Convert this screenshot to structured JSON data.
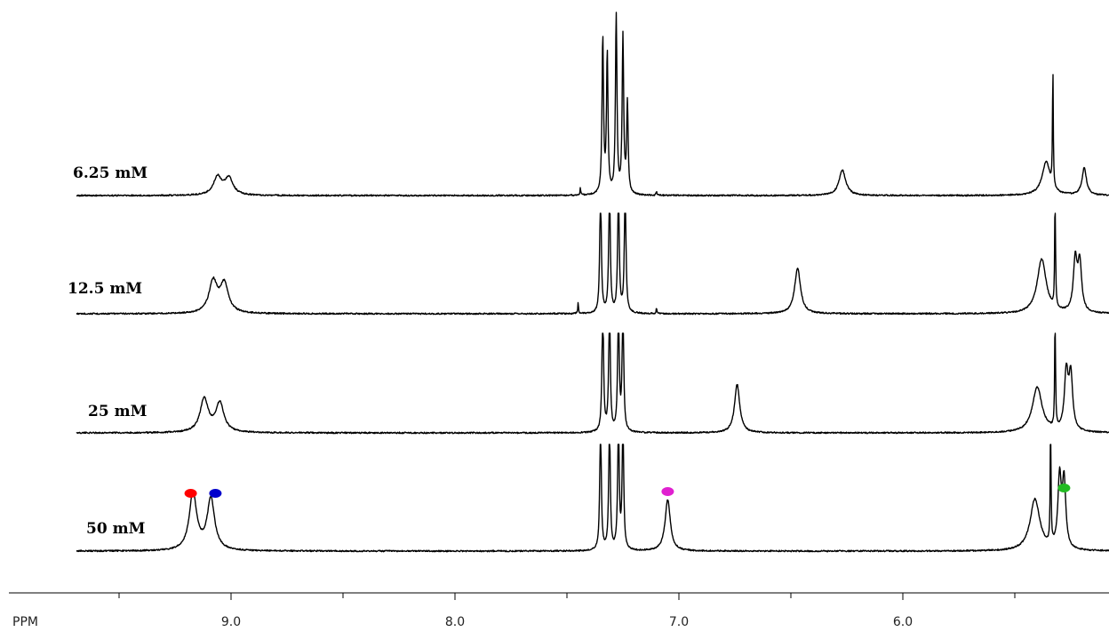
{
  "chart_data": {
    "type": "line",
    "xlabel": "PPM",
    "x_reversed": true,
    "xlim": [
      9.7,
      5.3
    ],
    "ticks": {
      "major": [
        9.0,
        8.0,
        7.0,
        6.0
      ],
      "major_labels": [
        "9.0",
        "8.0",
        "7.0",
        "6.0"
      ],
      "minor": [
        9.5,
        8.5,
        7.5,
        6.5,
        5.5
      ]
    },
    "series": [
      {
        "name": "6.25 mM",
        "peaks": [
          {
            "ppm": 9.06,
            "height": 0.3,
            "width": 0.022
          },
          {
            "ppm": 9.01,
            "height": 0.28,
            "width": 0.022
          },
          {
            "ppm": 7.44,
            "height": 0.12,
            "width": 0.002
          },
          {
            "ppm": 7.34,
            "height": 2.6,
            "width": 0.004
          },
          {
            "ppm": 7.32,
            "height": 2.3,
            "width": 0.004
          },
          {
            "ppm": 7.28,
            "height": 3.0,
            "width": 0.004
          },
          {
            "ppm": 7.25,
            "height": 2.6,
            "width": 0.004
          },
          {
            "ppm": 7.23,
            "height": 1.5,
            "width": 0.004
          },
          {
            "ppm": 7.1,
            "height": 0.08,
            "width": 0.002
          },
          {
            "ppm": 6.27,
            "height": 0.42,
            "width": 0.018
          },
          {
            "ppm": 5.36,
            "height": 0.55,
            "width": 0.022
          },
          {
            "ppm": 5.33,
            "height": 2.0,
            "width": 0.002
          },
          {
            "ppm": 5.19,
            "height": 0.45,
            "width": 0.012
          }
        ]
      },
      {
        "name": "12.5 mM",
        "peaks": [
          {
            "ppm": 9.08,
            "height": 0.52,
            "width": 0.022
          },
          {
            "ppm": 9.03,
            "height": 0.48,
            "width": 0.022
          },
          {
            "ppm": 7.45,
            "height": 0.18,
            "width": 0.002
          },
          {
            "ppm": 7.35,
            "height": 2.2,
            "width": 0.004
          },
          {
            "ppm": 7.31,
            "height": 2.2,
            "width": 0.004
          },
          {
            "ppm": 7.27,
            "height": 2.2,
            "width": 0.004
          },
          {
            "ppm": 7.24,
            "height": 2.2,
            "width": 0.004
          },
          {
            "ppm": 7.1,
            "height": 0.1,
            "width": 0.002
          },
          {
            "ppm": 6.47,
            "height": 0.75,
            "width": 0.016
          },
          {
            "ppm": 5.38,
            "height": 0.9,
            "width": 0.024
          },
          {
            "ppm": 5.32,
            "height": 2.2,
            "width": 0.002
          },
          {
            "ppm": 5.23,
            "height": 0.85,
            "width": 0.01
          },
          {
            "ppm": 5.21,
            "height": 0.8,
            "width": 0.01
          }
        ]
      },
      {
        "name": "25 mM",
        "peaks": [
          {
            "ppm": 9.12,
            "height": 0.55,
            "width": 0.022
          },
          {
            "ppm": 9.05,
            "height": 0.48,
            "width": 0.022
          },
          {
            "ppm": 7.34,
            "height": 2.2,
            "width": 0.004
          },
          {
            "ppm": 7.31,
            "height": 2.2,
            "width": 0.004
          },
          {
            "ppm": 7.27,
            "height": 2.2,
            "width": 0.004
          },
          {
            "ppm": 7.25,
            "height": 2.2,
            "width": 0.004
          },
          {
            "ppm": 6.74,
            "height": 0.8,
            "width": 0.014
          },
          {
            "ppm": 5.4,
            "height": 0.75,
            "width": 0.026
          },
          {
            "ppm": 5.32,
            "height": 2.2,
            "width": 0.002
          },
          {
            "ppm": 5.27,
            "height": 0.95,
            "width": 0.01
          },
          {
            "ppm": 5.25,
            "height": 0.9,
            "width": 0.01
          }
        ]
      },
      {
        "name": "50 mM",
        "peaks": [
          {
            "ppm": 9.17,
            "height": 0.95,
            "width": 0.02
          },
          {
            "ppm": 9.09,
            "height": 0.85,
            "width": 0.02
          },
          {
            "ppm": 7.35,
            "height": 2.2,
            "width": 0.004
          },
          {
            "ppm": 7.31,
            "height": 2.2,
            "width": 0.004
          },
          {
            "ppm": 7.27,
            "height": 2.2,
            "width": 0.004
          },
          {
            "ppm": 7.25,
            "height": 2.2,
            "width": 0.004
          },
          {
            "ppm": 7.05,
            "height": 0.85,
            "width": 0.014
          },
          {
            "ppm": 5.41,
            "height": 0.85,
            "width": 0.026
          },
          {
            "ppm": 5.34,
            "height": 2.2,
            "width": 0.002
          },
          {
            "ppm": 5.3,
            "height": 1.15,
            "width": 0.009
          },
          {
            "ppm": 5.28,
            "height": 1.1,
            "width": 0.009
          }
        ]
      }
    ],
    "markers": [
      {
        "color": "#ff0000",
        "ppm": 9.18,
        "series": "50 mM"
      },
      {
        "color": "#0000cc",
        "ppm": 9.07,
        "series": "50 mM"
      },
      {
        "color": "#e020d0",
        "ppm": 7.05,
        "series": "50 mM"
      },
      {
        "color": "#22bb22",
        "ppm": 5.28,
        "series": "50 mM"
      }
    ]
  }
}
